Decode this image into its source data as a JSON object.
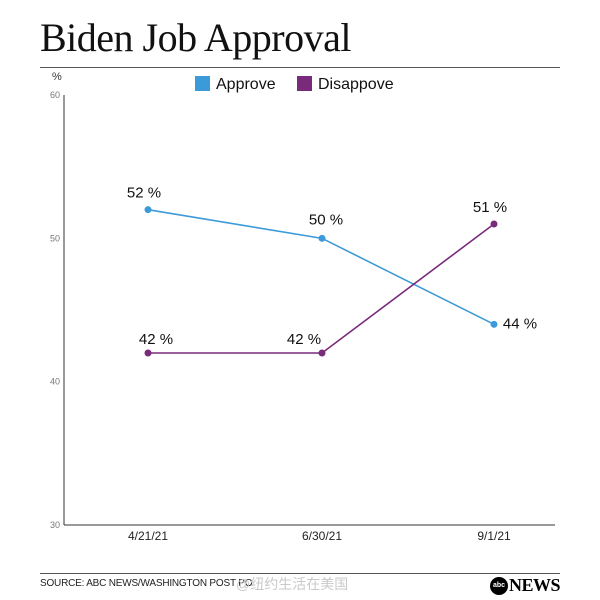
{
  "title": "Biden Job Approval",
  "chart_data": {
    "type": "line",
    "title": "Biden Job Approval",
    "ylabel": "%",
    "xlabel": "",
    "categories": [
      "4/21/21",
      "6/30/21",
      "9/1/21"
    ],
    "ylim": [
      30,
      60
    ],
    "yticks": [
      30,
      40,
      50,
      60
    ],
    "grid": false,
    "legend": "top",
    "series": [
      {
        "name": "Approve",
        "color": "#3d9ad9",
        "values": [
          52,
          50,
          44
        ],
        "labels": [
          "52 %",
          "50 %",
          "44 %"
        ]
      },
      {
        "name": "Disappove",
        "color": "#7a2a7a",
        "values": [
          42,
          42,
          51
        ],
        "labels": [
          "42 %",
          "42 %",
          "51 %"
        ]
      }
    ]
  },
  "footer": {
    "source": "SOURCE: ABC NEWS/WASHINGTON POST PO",
    "watermark": "@纽约生活在美国",
    "logo_badge": "abc",
    "logo_text": "NEWS"
  }
}
